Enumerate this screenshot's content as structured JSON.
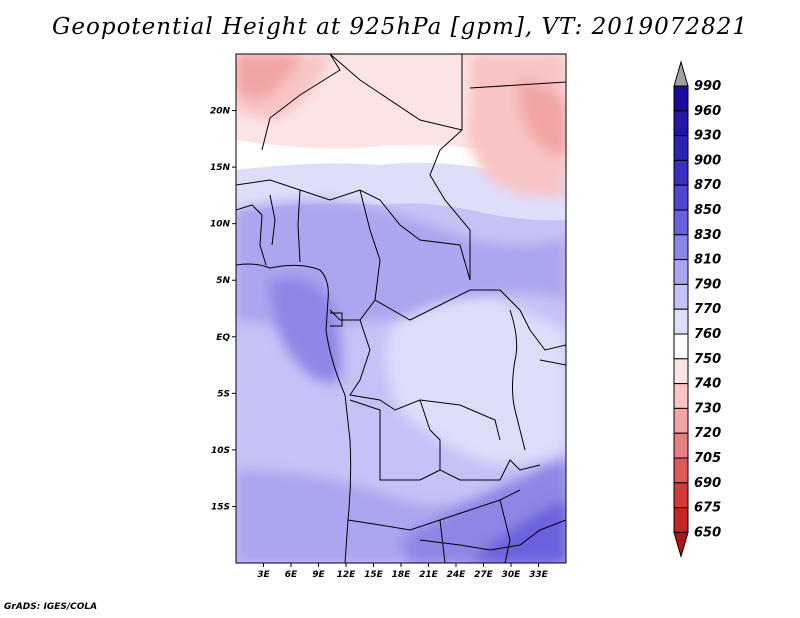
{
  "title": "Geopotential Height at 925hPa [gpm], VT: 2019072821",
  "footer": "GrADS: IGES/COLA",
  "map": {
    "lon_range": [
      0,
      36
    ],
    "lat_range": [
      -20,
      25
    ],
    "lat_ticks": [
      {
        "label": "20N",
        "value": 20
      },
      {
        "label": "15N",
        "value": 15
      },
      {
        "label": "10N",
        "value": 10
      },
      {
        "label": "5N",
        "value": 5
      },
      {
        "label": "EQ",
        "value": 0
      },
      {
        "label": "5S",
        "value": -5
      },
      {
        "label": "10S",
        "value": -10
      },
      {
        "label": "15S",
        "value": -15
      }
    ],
    "lon_ticks": [
      {
        "label": "3E",
        "value": 3
      },
      {
        "label": "6E",
        "value": 6
      },
      {
        "label": "9E",
        "value": 9
      },
      {
        "label": "12E",
        "value": 12
      },
      {
        "label": "15E",
        "value": 15
      },
      {
        "label": "18E",
        "value": 18
      },
      {
        "label": "21E",
        "value": 21
      },
      {
        "label": "24E",
        "value": 24
      },
      {
        "label": "27E",
        "value": 27
      },
      {
        "label": "30E",
        "value": 30
      },
      {
        "label": "33E",
        "value": 33
      }
    ]
  },
  "colorbar": {
    "top_arrow_color": "#a0a0a0",
    "levels": [
      {
        "label": "990",
        "color": "#1a0a9e"
      },
      {
        "label": "960",
        "color": "#2414a8"
      },
      {
        "label": "930",
        "color": "#2c22b4"
      },
      {
        "label": "900",
        "color": "#3a30c2"
      },
      {
        "label": "870",
        "color": "#5046d0"
      },
      {
        "label": "850",
        "color": "#6a62dc"
      },
      {
        "label": "830",
        "color": "#8c86e6"
      },
      {
        "label": "810",
        "color": "#aaa6ef"
      },
      {
        "label": "790",
        "color": "#c4c2f6"
      },
      {
        "label": "770",
        "color": "#dedefb"
      },
      {
        "label": "760",
        "color": "#ffffff"
      },
      {
        "label": "750",
        "color": "#fde4e4"
      },
      {
        "label": "740",
        "color": "#f8c4c4"
      },
      {
        "label": "730",
        "color": "#f2a4a4"
      },
      {
        "label": "720",
        "color": "#e88080"
      },
      {
        "label": "705",
        "color": "#de5a5a"
      },
      {
        "label": "690",
        "color": "#d23a3a"
      },
      {
        "label": "675",
        "color": "#c42424"
      },
      {
        "label": "650",
        "color": "#b01414"
      }
    ]
  },
  "regions": [
    {
      "name": "ridge-northwest",
      "color": "#f4b6b6"
    },
    {
      "name": "ridge-northeast",
      "color": "#f0a8a8"
    },
    {
      "name": "sahel-band",
      "color": "#fde4e4"
    },
    {
      "name": "low-over-west-coast",
      "color": "#9a94ec"
    },
    {
      "name": "deep-southeast",
      "color": "#6a62dc"
    }
  ]
}
